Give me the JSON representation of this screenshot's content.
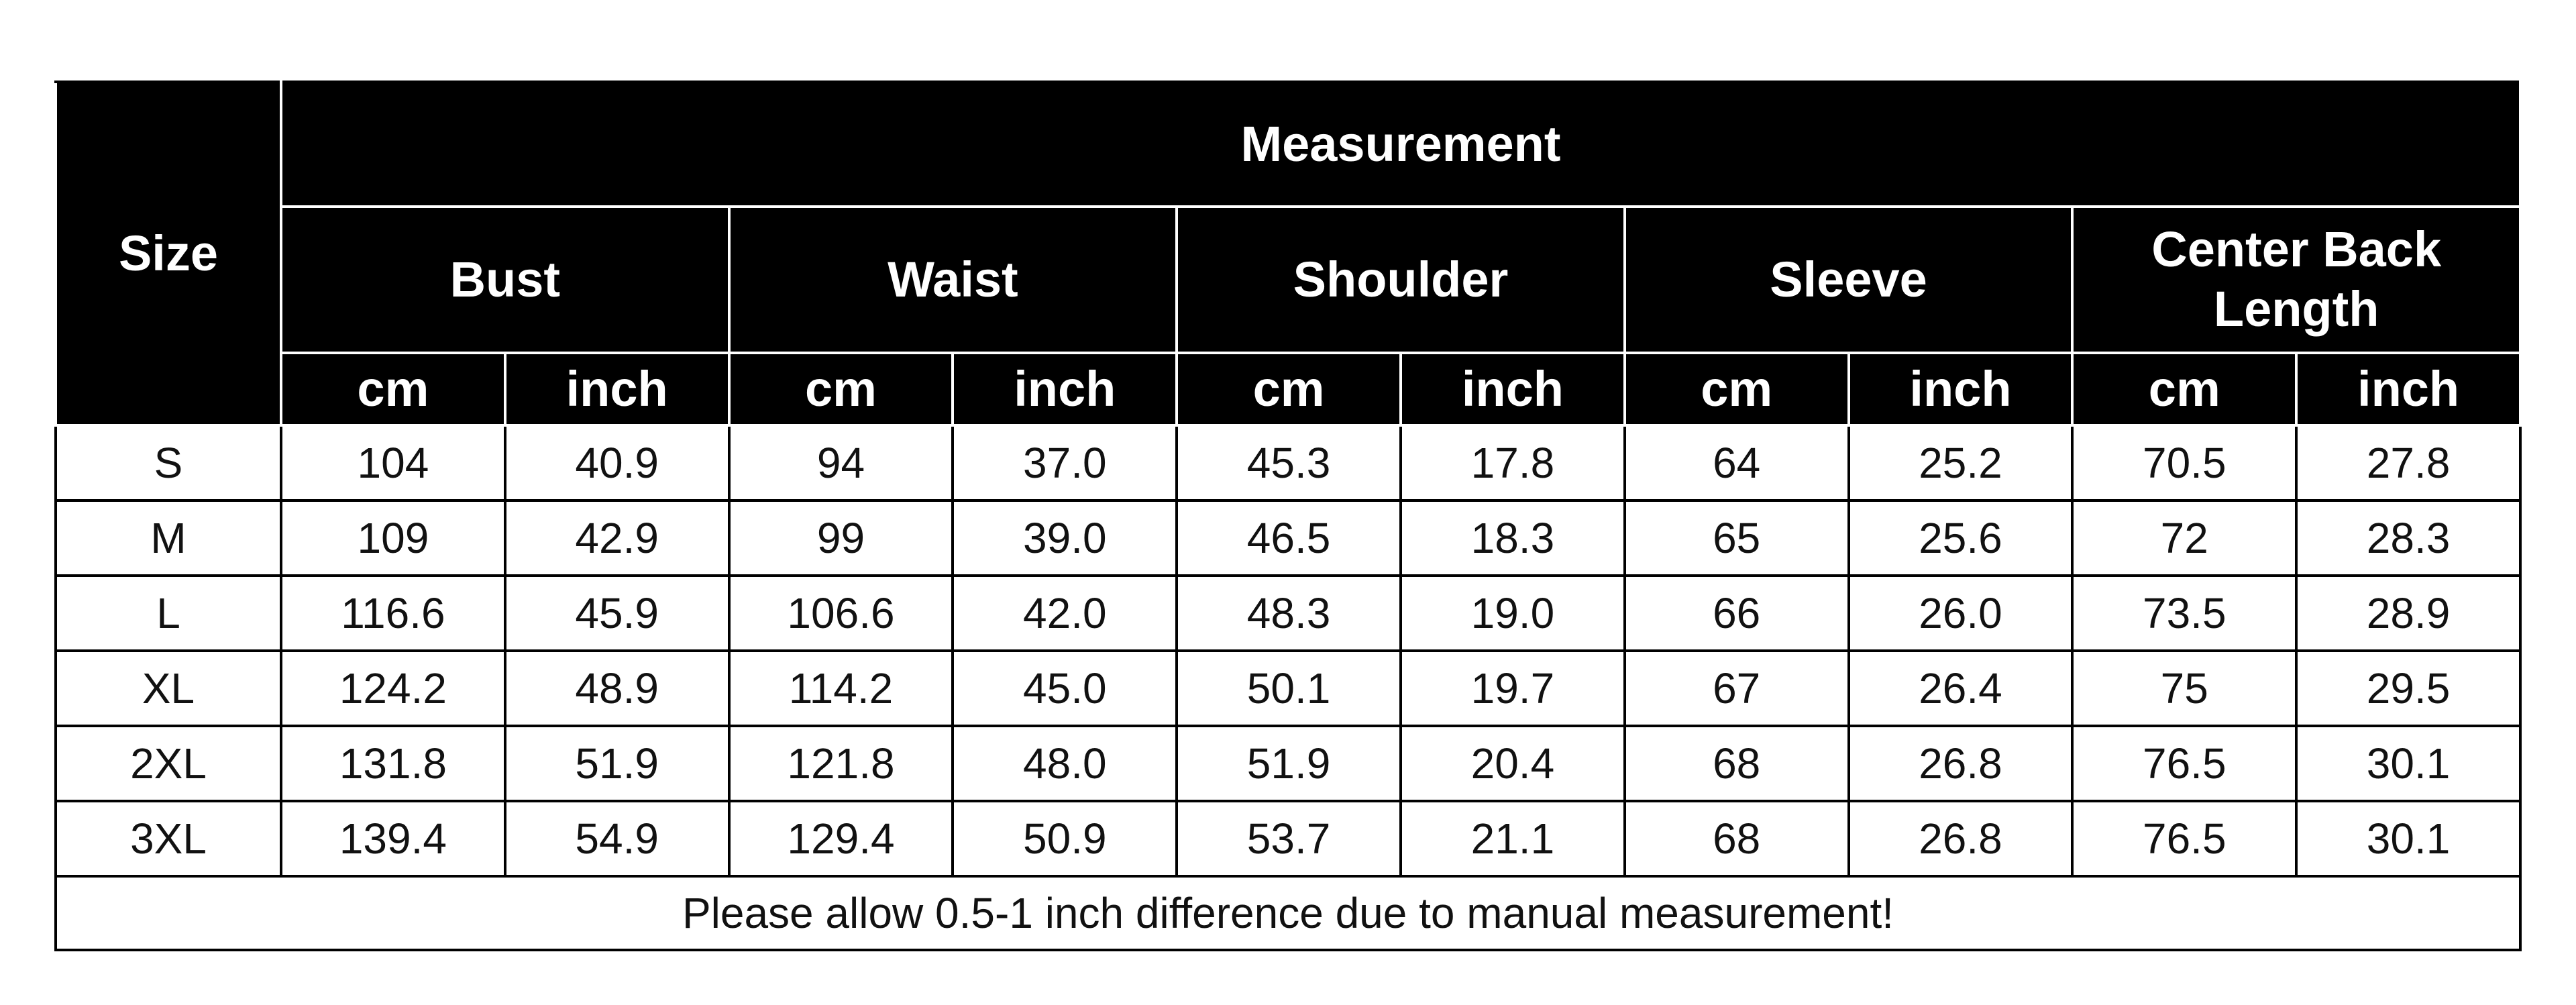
{
  "header": {
    "size": "Size",
    "measurement": "Measurement",
    "groups": [
      "Bust",
      "Waist",
      "Shoulder",
      "Sleeve",
      "Center Back Length"
    ],
    "units": [
      "cm",
      "inch",
      "cm",
      "inch",
      "cm",
      "inch",
      "cm",
      "inch",
      "cm",
      "inch"
    ]
  },
  "rows": [
    {
      "size": "S",
      "values": [
        "104",
        "40.9",
        "94",
        "37.0",
        "45.3",
        "17.8",
        "64",
        "25.2",
        "70.5",
        "27.8"
      ]
    },
    {
      "size": "M",
      "values": [
        "109",
        "42.9",
        "99",
        "39.0",
        "46.5",
        "18.3",
        "65",
        "25.6",
        "72",
        "28.3"
      ]
    },
    {
      "size": "L",
      "values": [
        "116.6",
        "45.9",
        "106.6",
        "42.0",
        "48.3",
        "19.0",
        "66",
        "26.0",
        "73.5",
        "28.9"
      ]
    },
    {
      "size": "XL",
      "values": [
        "124.2",
        "48.9",
        "114.2",
        "45.0",
        "50.1",
        "19.7",
        "67",
        "26.4",
        "75",
        "29.5"
      ]
    },
    {
      "size": "2XL",
      "values": [
        "131.8",
        "51.9",
        "121.8",
        "48.0",
        "51.9",
        "20.4",
        "68",
        "26.8",
        "76.5",
        "30.1"
      ]
    },
    {
      "size": "3XL",
      "values": [
        "139.4",
        "54.9",
        "129.4",
        "50.9",
        "53.7",
        "21.1",
        "68",
        "26.8",
        "76.5",
        "30.1"
      ]
    }
  ],
  "note": "Please allow 0.5-1 inch difference due to manual measurement!"
}
